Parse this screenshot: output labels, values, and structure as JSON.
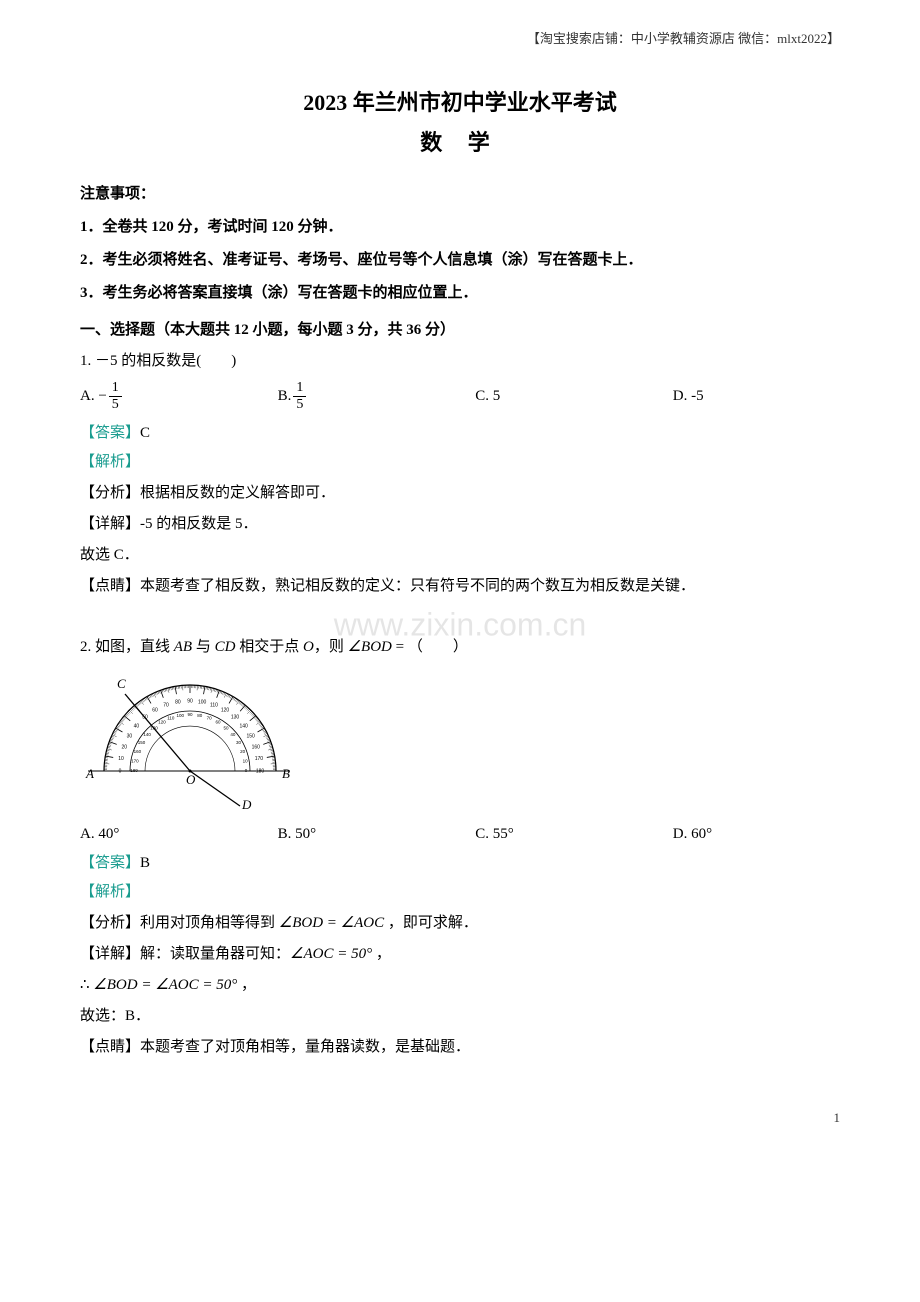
{
  "colors": {
    "text": "#000000",
    "teal": "#1a9c8f",
    "watermark": "rgba(0,0,0,0.10)",
    "background": "#ffffff"
  },
  "header_note": "【淘宝搜索店铺：中小学教辅资源店 微信：mlxt2022】",
  "title_main": "2023 年兰州市初中学业水平考试",
  "title_sub": "数 学",
  "notice_heading": "注意事项：",
  "notices": [
    "1．全卷共 120 分，考试时间 120 分钟．",
    "2．考生必须将姓名、准考证号、考场号、座位号等个人信息填（涂）写在答题卡上．",
    "3．考生务必将答案直接填（涂）写在答题卡的相应位置上．"
  ],
  "section1_title": "一、选择题（本大题共 12 小题，每小题 3 分，共 36 分）",
  "q1": {
    "stem": "1. －5 的相反数是(　　)",
    "optA_prefix": "A.  −",
    "optA_frac_num": "1",
    "optA_frac_den": "5",
    "optB_prefix": "B.  ",
    "optB_frac_num": "1",
    "optB_frac_den": "5",
    "optC": "C. 5",
    "optD": "D. -5",
    "answer_label": "【答案】",
    "answer_value": "C",
    "analysis_label": "【解析】",
    "line_fenxi": "【分析】根据相反数的定义解答即可．",
    "line_detail": "【详解】-5 的相反数是 5．",
    "line_choose": "故选 C．",
    "line_dianjing": "【点睛】本题考查了相反数，熟记相反数的定义：只有符号不同的两个数互为相反数是关键．"
  },
  "q2": {
    "stem_prefix": "2. 如图，直线 ",
    "ab": "AB",
    "stem_mid1": " 与 ",
    "cd": "CD",
    "stem_mid2": " 相交于点 ",
    "o": "O",
    "stem_mid3": "，则 ",
    "angle_bod": "∠BOD",
    "stem_suffix": " = （　　）",
    "optA": "A.  40°",
    "optB": "B.  50°",
    "optC": "C.  55°",
    "optD": "D.  60°",
    "answer_label": "【答案】",
    "answer_value": "B",
    "analysis_label": "【解析】",
    "line_fenxi_prefix": "【分析】利用对顶角相等得到 ",
    "fenxi_eq": "∠BOD = ∠AOC",
    "line_fenxi_suffix": " ，即可求解．",
    "line_detail_prefix": "【详解】解：读取量角器可知：",
    "detail_eq": "∠AOC = 50°",
    "line_detail_suffix": " ，",
    "line_therefore_prefix": "∴ ",
    "therefore_eq": "∠BOD = ∠AOC = 50°",
    "line_therefore_suffix": " ，",
    "line_choose": "故选：B．",
    "line_dianjing": "【点睛】本题考查了对顶角相等，量角器读数，是基础题．"
  },
  "diagram": {
    "labels": {
      "A": "A",
      "B": "B",
      "C": "C",
      "D": "D",
      "O": "O"
    },
    "tick_labels": [
      "0",
      "10",
      "20",
      "30",
      "40",
      "50",
      "60",
      "70",
      "80",
      "90",
      "100",
      "110",
      "120",
      "130",
      "140",
      "150",
      "160",
      "170",
      "180"
    ],
    "inner_labels": [
      "180",
      "170",
      "160",
      "150",
      "140",
      "130",
      "120",
      "110",
      "100",
      "90",
      "80",
      "70",
      "60",
      "50",
      "40",
      "30",
      "20",
      "10",
      "0"
    ],
    "arc_color": "#000000",
    "line_color": "#000000",
    "fill": "#ffffff"
  },
  "watermark": "www.zixin.com.cn",
  "page_number": "1"
}
